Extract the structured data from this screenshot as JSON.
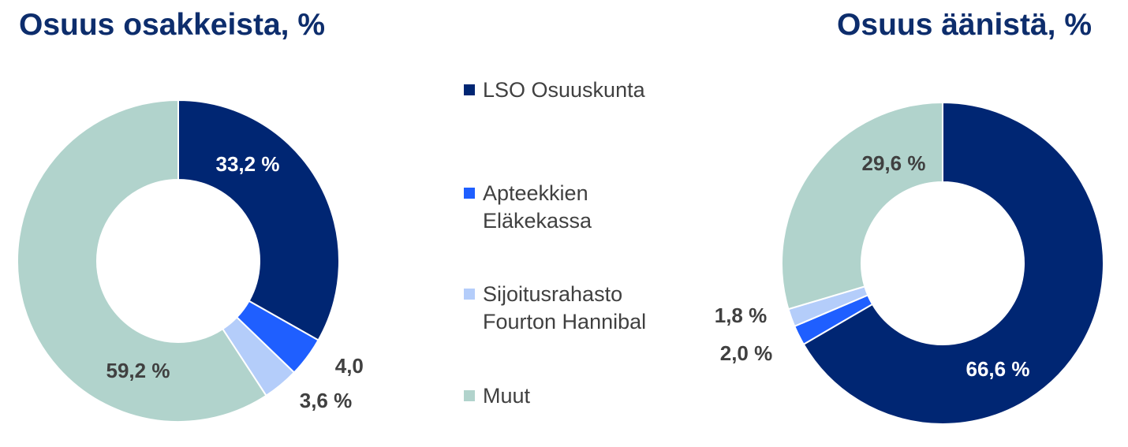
{
  "colors": {
    "title": "#0d2d6c",
    "inside_label": "#ffffff",
    "outside_label": "#404040"
  },
  "legend": [
    {
      "label": "LSO Osuuskunta",
      "color": "#002673"
    },
    {
      "label": "Apteekkien\nEläkekassa",
      "color": "#1f5fff"
    },
    {
      "label": "Sijoitusrahasto\nFourton Hannibal",
      "color": "#b4cdfa"
    },
    {
      "label": "Muut",
      "color": "#b1d3cc"
    }
  ],
  "chart_data": [
    {
      "type": "pie",
      "style": "donut",
      "title": "Osuus osakkeista, %",
      "categories": [
        "LSO Osuuskunta",
        "Apteekkien Eläkekassa",
        "Sijoitusrahasto Fourton Hannibal",
        "Muut"
      ],
      "values": [
        33.2,
        4.0,
        3.6,
        59.2
      ],
      "labels": [
        "33,2 %",
        "4,0 %",
        "3,6 %",
        "59,2 %"
      ],
      "colors": [
        "#002673",
        "#1f5fff",
        "#b4cdfa",
        "#b1d3cc"
      ],
      "start": "12 o'clock, clockwise"
    },
    {
      "type": "pie",
      "style": "donut",
      "title": "Osuus äänistä, %",
      "categories": [
        "LSO Osuuskunta",
        "Apteekkien Eläkekassa",
        "Sijoitusrahasto Fourton Hannibal",
        "Muut"
      ],
      "values": [
        66.6,
        2.0,
        1.8,
        29.6
      ],
      "labels": [
        "66,6 %",
        "2,0 %",
        "1,8 %",
        "29,6 %"
      ],
      "colors": [
        "#002673",
        "#1f5fff",
        "#b4cdfa",
        "#b1d3cc"
      ],
      "start": "12 o'clock, clockwise"
    }
  ]
}
